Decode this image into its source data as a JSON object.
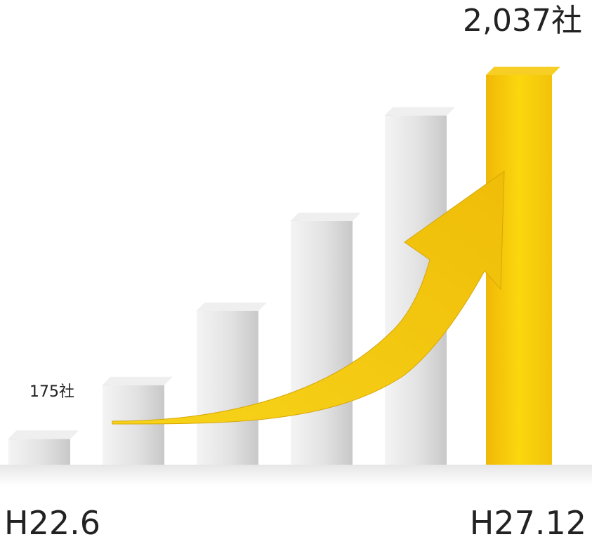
{
  "chart_data": {
    "type": "bar",
    "categories": [
      "H22.6",
      "",
      "",
      "",
      "",
      "H27.12"
    ],
    "values": [
      175,
      450,
      830,
      1290,
      1830,
      2037
    ],
    "data_labels": [
      "175社",
      "",
      "",
      "",
      "",
      "2,037社"
    ],
    "highlight_index": 5,
    "grid": false,
    "legend": "none",
    "colors": {
      "bar": "#d9d9d9",
      "highlight": "#f2c20a",
      "arrow": "#f3c715",
      "text": "#222222"
    }
  },
  "labels": {
    "first_value": "175社",
    "last_value": "2,037社",
    "x_start": "H22.6",
    "x_end": "H27.12"
  }
}
